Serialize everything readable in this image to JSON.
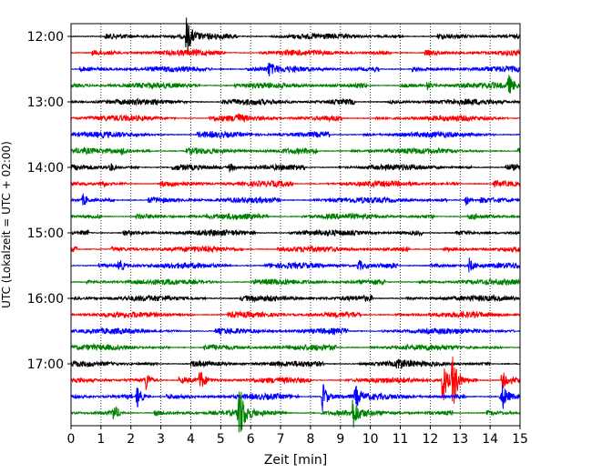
{
  "chart_data": {
    "type": "line",
    "title": "",
    "xlabel": "Zeit  [min]",
    "ylabel": "UTC (Lokalzeit = UTC + 02:00)",
    "xlim": [
      0,
      15
    ],
    "x_ticks": [
      "0",
      "1",
      "2",
      "3",
      "4",
      "5",
      "6",
      "7",
      "8",
      "9",
      "10",
      "11",
      "12",
      "13",
      "14",
      "15"
    ],
    "y_ticks": [
      "12:00",
      "13:00",
      "14:00",
      "15:00",
      "16:00",
      "17:00"
    ],
    "y_tick_rows": [
      0,
      4,
      8,
      12,
      16,
      20
    ],
    "grid": "vertical dotted",
    "trace_interval_minutes": 15,
    "start_time": "12:00",
    "row_count": 24,
    "colors_cycle": [
      "#000000",
      "#ff0000",
      "#0000ff",
      "#008000"
    ],
    "traces": [
      {
        "start": "12:00",
        "color": "#000000",
        "events": [
          {
            "t": 3.85,
            "amp": 20
          }
        ]
      },
      {
        "start": "12:15",
        "color": "#ff0000",
        "events": []
      },
      {
        "start": "12:30",
        "color": "#0000ff",
        "events": [
          {
            "t": 6.6,
            "amp": 7
          }
        ]
      },
      {
        "start": "12:45",
        "color": "#008000",
        "events": [
          {
            "t": 11.9,
            "amp": 5
          },
          {
            "t": 14.6,
            "amp": 12
          }
        ]
      },
      {
        "start": "13:00",
        "color": "#000000",
        "events": []
      },
      {
        "start": "13:15",
        "color": "#ff0000",
        "events": [
          {
            "t": 5.5,
            "amp": 5
          }
        ]
      },
      {
        "start": "13:30",
        "color": "#0000ff",
        "events": []
      },
      {
        "start": "13:45",
        "color": "#008000",
        "events": [
          {
            "t": 1.7,
            "amp": 4
          }
        ]
      },
      {
        "start": "14:00",
        "color": "#000000",
        "events": [
          {
            "t": 1.3,
            "amp": 5
          },
          {
            "t": 5.3,
            "amp": 5
          }
        ]
      },
      {
        "start": "14:15",
        "color": "#ff0000",
        "events": [
          {
            "t": 1.0,
            "amp": 5
          }
        ]
      },
      {
        "start": "14:30",
        "color": "#0000ff",
        "events": [
          {
            "t": 0.4,
            "amp": 7
          },
          {
            "t": 13.2,
            "amp": 6
          }
        ]
      },
      {
        "start": "14:45",
        "color": "#008000",
        "events": []
      },
      {
        "start": "15:00",
        "color": "#000000",
        "events": []
      },
      {
        "start": "15:15",
        "color": "#ff0000",
        "events": []
      },
      {
        "start": "15:30",
        "color": "#0000ff",
        "events": [
          {
            "t": 1.6,
            "amp": 8
          },
          {
            "t": 9.6,
            "amp": 7
          },
          {
            "t": 13.3,
            "amp": 8
          }
        ]
      },
      {
        "start": "15:45",
        "color": "#008000",
        "events": []
      },
      {
        "start": "16:00",
        "color": "#000000",
        "events": []
      },
      {
        "start": "16:15",
        "color": "#ff0000",
        "events": []
      },
      {
        "start": "16:30",
        "color": "#0000ff",
        "events": []
      },
      {
        "start": "16:45",
        "color": "#008000",
        "events": []
      },
      {
        "start": "17:00",
        "color": "#000000",
        "events": [
          {
            "t": 10.9,
            "amp": 7
          }
        ]
      },
      {
        "start": "17:15",
        "color": "#ff0000",
        "events": [
          {
            "t": 2.5,
            "amp": 12
          },
          {
            "t": 4.3,
            "amp": 12
          },
          {
            "t": 12.4,
            "amp": 30
          },
          {
            "t": 12.75,
            "amp": 35
          },
          {
            "t": 14.4,
            "amp": 12
          }
        ]
      },
      {
        "start": "17:30",
        "color": "#0000ff",
        "events": [
          {
            "t": 2.2,
            "amp": 14
          },
          {
            "t": 8.4,
            "amp": 18
          },
          {
            "t": 9.5,
            "amp": 12
          },
          {
            "t": 14.4,
            "amp": 14
          }
        ]
      },
      {
        "start": "17:45",
        "color": "#008000",
        "events": [
          {
            "t": 1.4,
            "amp": 8
          },
          {
            "t": 5.6,
            "amp": 40
          },
          {
            "t": 9.4,
            "amp": 18
          }
        ]
      }
    ]
  }
}
